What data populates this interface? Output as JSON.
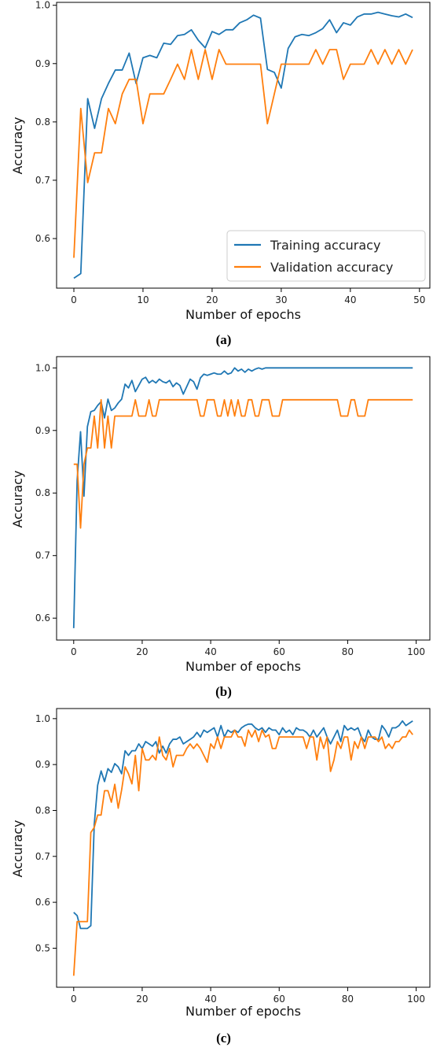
{
  "colors": {
    "training": "#1f77b4",
    "validation": "#ff7f0e"
  },
  "chart_data": [
    {
      "type": "line",
      "caption": "(a)",
      "xlabel": "Number of epochs",
      "ylabel": "Accuracy",
      "xlim": [
        -2.5,
        51.5
      ],
      "ylim": [
        0.515,
        1.005
      ],
      "xticks": [
        0,
        10,
        20,
        30,
        40,
        50
      ],
      "yticks": [
        0.6,
        0.7,
        0.8,
        0.9,
        1.0
      ],
      "ytick_labels": [
        "0.6",
        "0.7",
        "0.8",
        "0.9",
        "1.0"
      ],
      "legend": {
        "placement": "lower-right",
        "entries": [
          "Training accuracy",
          "Validation accuracy"
        ]
      },
      "series": [
        {
          "name": "Training accuracy",
          "color": "#1f77b4",
          "values": [
            0.532,
            0.54,
            0.84,
            0.789,
            0.84,
            0.866,
            0.889,
            0.889,
            0.918,
            0.866,
            0.91,
            0.914,
            0.91,
            0.935,
            0.933,
            0.948,
            0.95,
            0.958,
            0.94,
            0.927,
            0.955,
            0.95,
            0.958,
            0.958,
            0.97,
            0.975,
            0.983,
            0.978,
            0.89,
            0.885,
            0.858,
            0.926,
            0.946,
            0.95,
            0.948,
            0.953,
            0.96,
            0.975,
            0.953,
            0.97,
            0.966,
            0.98,
            0.985,
            0.985,
            0.988,
            0.985,
            0.982,
            0.98,
            0.985,
            0.979
          ]
        },
        {
          "name": "Validation accuracy",
          "color": "#ff7f0e",
          "values": [
            0.567,
            0.823,
            0.696,
            0.747,
            0.747,
            0.823,
            0.797,
            0.848,
            0.873,
            0.873,
            0.797,
            0.848,
            0.848,
            0.848,
            0.873,
            0.899,
            0.873,
            0.924,
            0.873,
            0.924,
            0.873,
            0.924,
            0.899,
            0.899,
            0.899,
            0.899,
            0.899,
            0.899,
            0.797,
            0.848,
            0.899,
            0.899,
            0.899,
            0.899,
            0.899,
            0.924,
            0.899,
            0.924,
            0.924,
            0.873,
            0.899,
            0.899,
            0.899,
            0.924,
            0.899,
            0.924,
            0.899,
            0.924,
            0.899,
            0.924
          ]
        }
      ]
    },
    {
      "type": "line",
      "caption": "(b)",
      "xlabel": "Number of epochs",
      "ylabel": "Accuracy",
      "xlim": [
        -5,
        104
      ],
      "ylim": [
        0.565,
        1.018
      ],
      "xticks": [
        0,
        20,
        40,
        60,
        80,
        100
      ],
      "yticks": [
        0.6,
        0.7,
        0.8,
        0.9,
        1.0
      ],
      "ytick_labels": [
        "0.6",
        "0.7",
        "0.8",
        "0.9",
        "1.0"
      ],
      "series": [
        {
          "name": "Training accuracy",
          "color": "#1f77b4",
          "values": [
            0.584,
            0.82,
            0.898,
            0.795,
            0.906,
            0.93,
            0.932,
            0.94,
            0.946,
            0.92,
            0.95,
            0.932,
            0.936,
            0.944,
            0.95,
            0.974,
            0.968,
            0.98,
            0.962,
            0.972,
            0.982,
            0.985,
            0.976,
            0.98,
            0.976,
            0.982,
            0.978,
            0.976,
            0.98,
            0.97,
            0.976,
            0.972,
            0.958,
            0.97,
            0.982,
            0.978,
            0.966,
            0.984,
            0.99,
            0.988,
            0.99,
            0.992,
            0.99,
            0.99,
            0.995,
            0.99,
            0.992,
            1.0,
            0.995,
            0.998,
            0.993,
            0.998,
            0.995,
            0.998,
            1.0,
            0.998,
            1.0,
            1.0,
            1.0,
            1.0,
            1.0,
            1.0,
            1.0,
            1.0,
            1.0,
            1.0,
            1.0,
            1.0,
            1.0,
            1.0,
            1.0,
            1.0,
            1.0,
            1.0,
            1.0,
            1.0,
            1.0,
            1.0,
            1.0,
            1.0,
            1.0,
            1.0,
            1.0,
            1.0,
            1.0,
            1.0,
            1.0,
            1.0,
            1.0,
            1.0,
            1.0,
            1.0,
            1.0,
            1.0,
            1.0,
            1.0,
            1.0,
            1.0,
            1.0,
            1.0
          ]
        },
        {
          "name": "Validation accuracy",
          "color": "#ff7f0e",
          "values": [
            0.846,
            0.846,
            0.744,
            0.846,
            0.872,
            0.872,
            0.923,
            0.872,
            0.949,
            0.872,
            0.923,
            0.872,
            0.923,
            0.923,
            0.923,
            0.923,
            0.923,
            0.923,
            0.949,
            0.923,
            0.923,
            0.923,
            0.949,
            0.923,
            0.923,
            0.949,
            0.949,
            0.949,
            0.949,
            0.949,
            0.949,
            0.949,
            0.949,
            0.949,
            0.949,
            0.949,
            0.949,
            0.923,
            0.923,
            0.949,
            0.949,
            0.949,
            0.923,
            0.923,
            0.949,
            0.923,
            0.949,
            0.923,
            0.949,
            0.923,
            0.923,
            0.949,
            0.949,
            0.923,
            0.923,
            0.949,
            0.949,
            0.949,
            0.923,
            0.923,
            0.923,
            0.949,
            0.949,
            0.949,
            0.949,
            0.949,
            0.949,
            0.949,
            0.949,
            0.949,
            0.949,
            0.949,
            0.949,
            0.949,
            0.949,
            0.949,
            0.949,
            0.949,
            0.923,
            0.923,
            0.923,
            0.949,
            0.949,
            0.923,
            0.923,
            0.923,
            0.949,
            0.949,
            0.949,
            0.949,
            0.949,
            0.949,
            0.949,
            0.949,
            0.949,
            0.949,
            0.949,
            0.949,
            0.949,
            0.949
          ]
        }
      ]
    },
    {
      "type": "line",
      "caption": "(c)",
      "xlabel": "Number of epochs",
      "ylabel": "Accuracy",
      "xlim": [
        -5,
        104
      ],
      "ylim": [
        0.415,
        1.022
      ],
      "xticks": [
        0,
        20,
        40,
        60,
        80,
        100
      ],
      "yticks": [
        0.5,
        0.6,
        0.7,
        0.8,
        0.9,
        1.0
      ],
      "ytick_labels": [
        "0.5",
        "0.6",
        "0.7",
        "0.8",
        "0.9",
        "1.0"
      ],
      "series": [
        {
          "name": "Training accuracy",
          "color": "#1f77b4",
          "values": [
            0.578,
            0.571,
            0.543,
            0.543,
            0.543,
            0.549,
            0.77,
            0.855,
            0.886,
            0.863,
            0.891,
            0.883,
            0.902,
            0.895,
            0.88,
            0.93,
            0.92,
            0.93,
            0.93,
            0.945,
            0.935,
            0.95,
            0.945,
            0.94,
            0.95,
            0.925,
            0.94,
            0.925,
            0.945,
            0.955,
            0.955,
            0.96,
            0.945,
            0.95,
            0.955,
            0.96,
            0.97,
            0.96,
            0.975,
            0.97,
            0.975,
            0.98,
            0.96,
            0.985,
            0.96,
            0.975,
            0.97,
            0.975,
            0.97,
            0.98,
            0.985,
            0.988,
            0.988,
            0.98,
            0.975,
            0.98,
            0.97,
            0.98,
            0.975,
            0.975,
            0.965,
            0.98,
            0.97,
            0.975,
            0.965,
            0.98,
            0.975,
            0.975,
            0.97,
            0.96,
            0.975,
            0.96,
            0.97,
            0.98,
            0.96,
            0.945,
            0.96,
            0.975,
            0.95,
            0.985,
            0.975,
            0.98,
            0.975,
            0.98,
            0.96,
            0.95,
            0.975,
            0.96,
            0.955,
            0.955,
            0.985,
            0.975,
            0.96,
            0.98,
            0.98,
            0.985,
            0.995,
            0.985,
            0.99,
            0.995
          ]
        },
        {
          "name": "Validation accuracy",
          "color": "#ff7f0e",
          "values": [
            0.44,
            0.558,
            0.558,
            0.558,
            0.558,
            0.752,
            0.763,
            0.79,
            0.79,
            0.843,
            0.843,
            0.818,
            0.857,
            0.805,
            0.845,
            0.895,
            0.88,
            0.858,
            0.92,
            0.843,
            0.935,
            0.91,
            0.91,
            0.92,
            0.91,
            0.96,
            0.92,
            0.91,
            0.935,
            0.895,
            0.92,
            0.92,
            0.92,
            0.935,
            0.945,
            0.935,
            0.945,
            0.935,
            0.92,
            0.905,
            0.945,
            0.935,
            0.96,
            0.935,
            0.96,
            0.96,
            0.96,
            0.975,
            0.96,
            0.96,
            0.94,
            0.975,
            0.96,
            0.975,
            0.95,
            0.975,
            0.96,
            0.965,
            0.935,
            0.935,
            0.96,
            0.96,
            0.96,
            0.96,
            0.96,
            0.96,
            0.96,
            0.96,
            0.935,
            0.96,
            0.96,
            0.91,
            0.96,
            0.935,
            0.96,
            0.885,
            0.91,
            0.95,
            0.935,
            0.96,
            0.96,
            0.91,
            0.95,
            0.935,
            0.96,
            0.935,
            0.96,
            0.96,
            0.96,
            0.95,
            0.96,
            0.935,
            0.945,
            0.935,
            0.95,
            0.95,
            0.96,
            0.96,
            0.975,
            0.965
          ]
        }
      ]
    }
  ]
}
